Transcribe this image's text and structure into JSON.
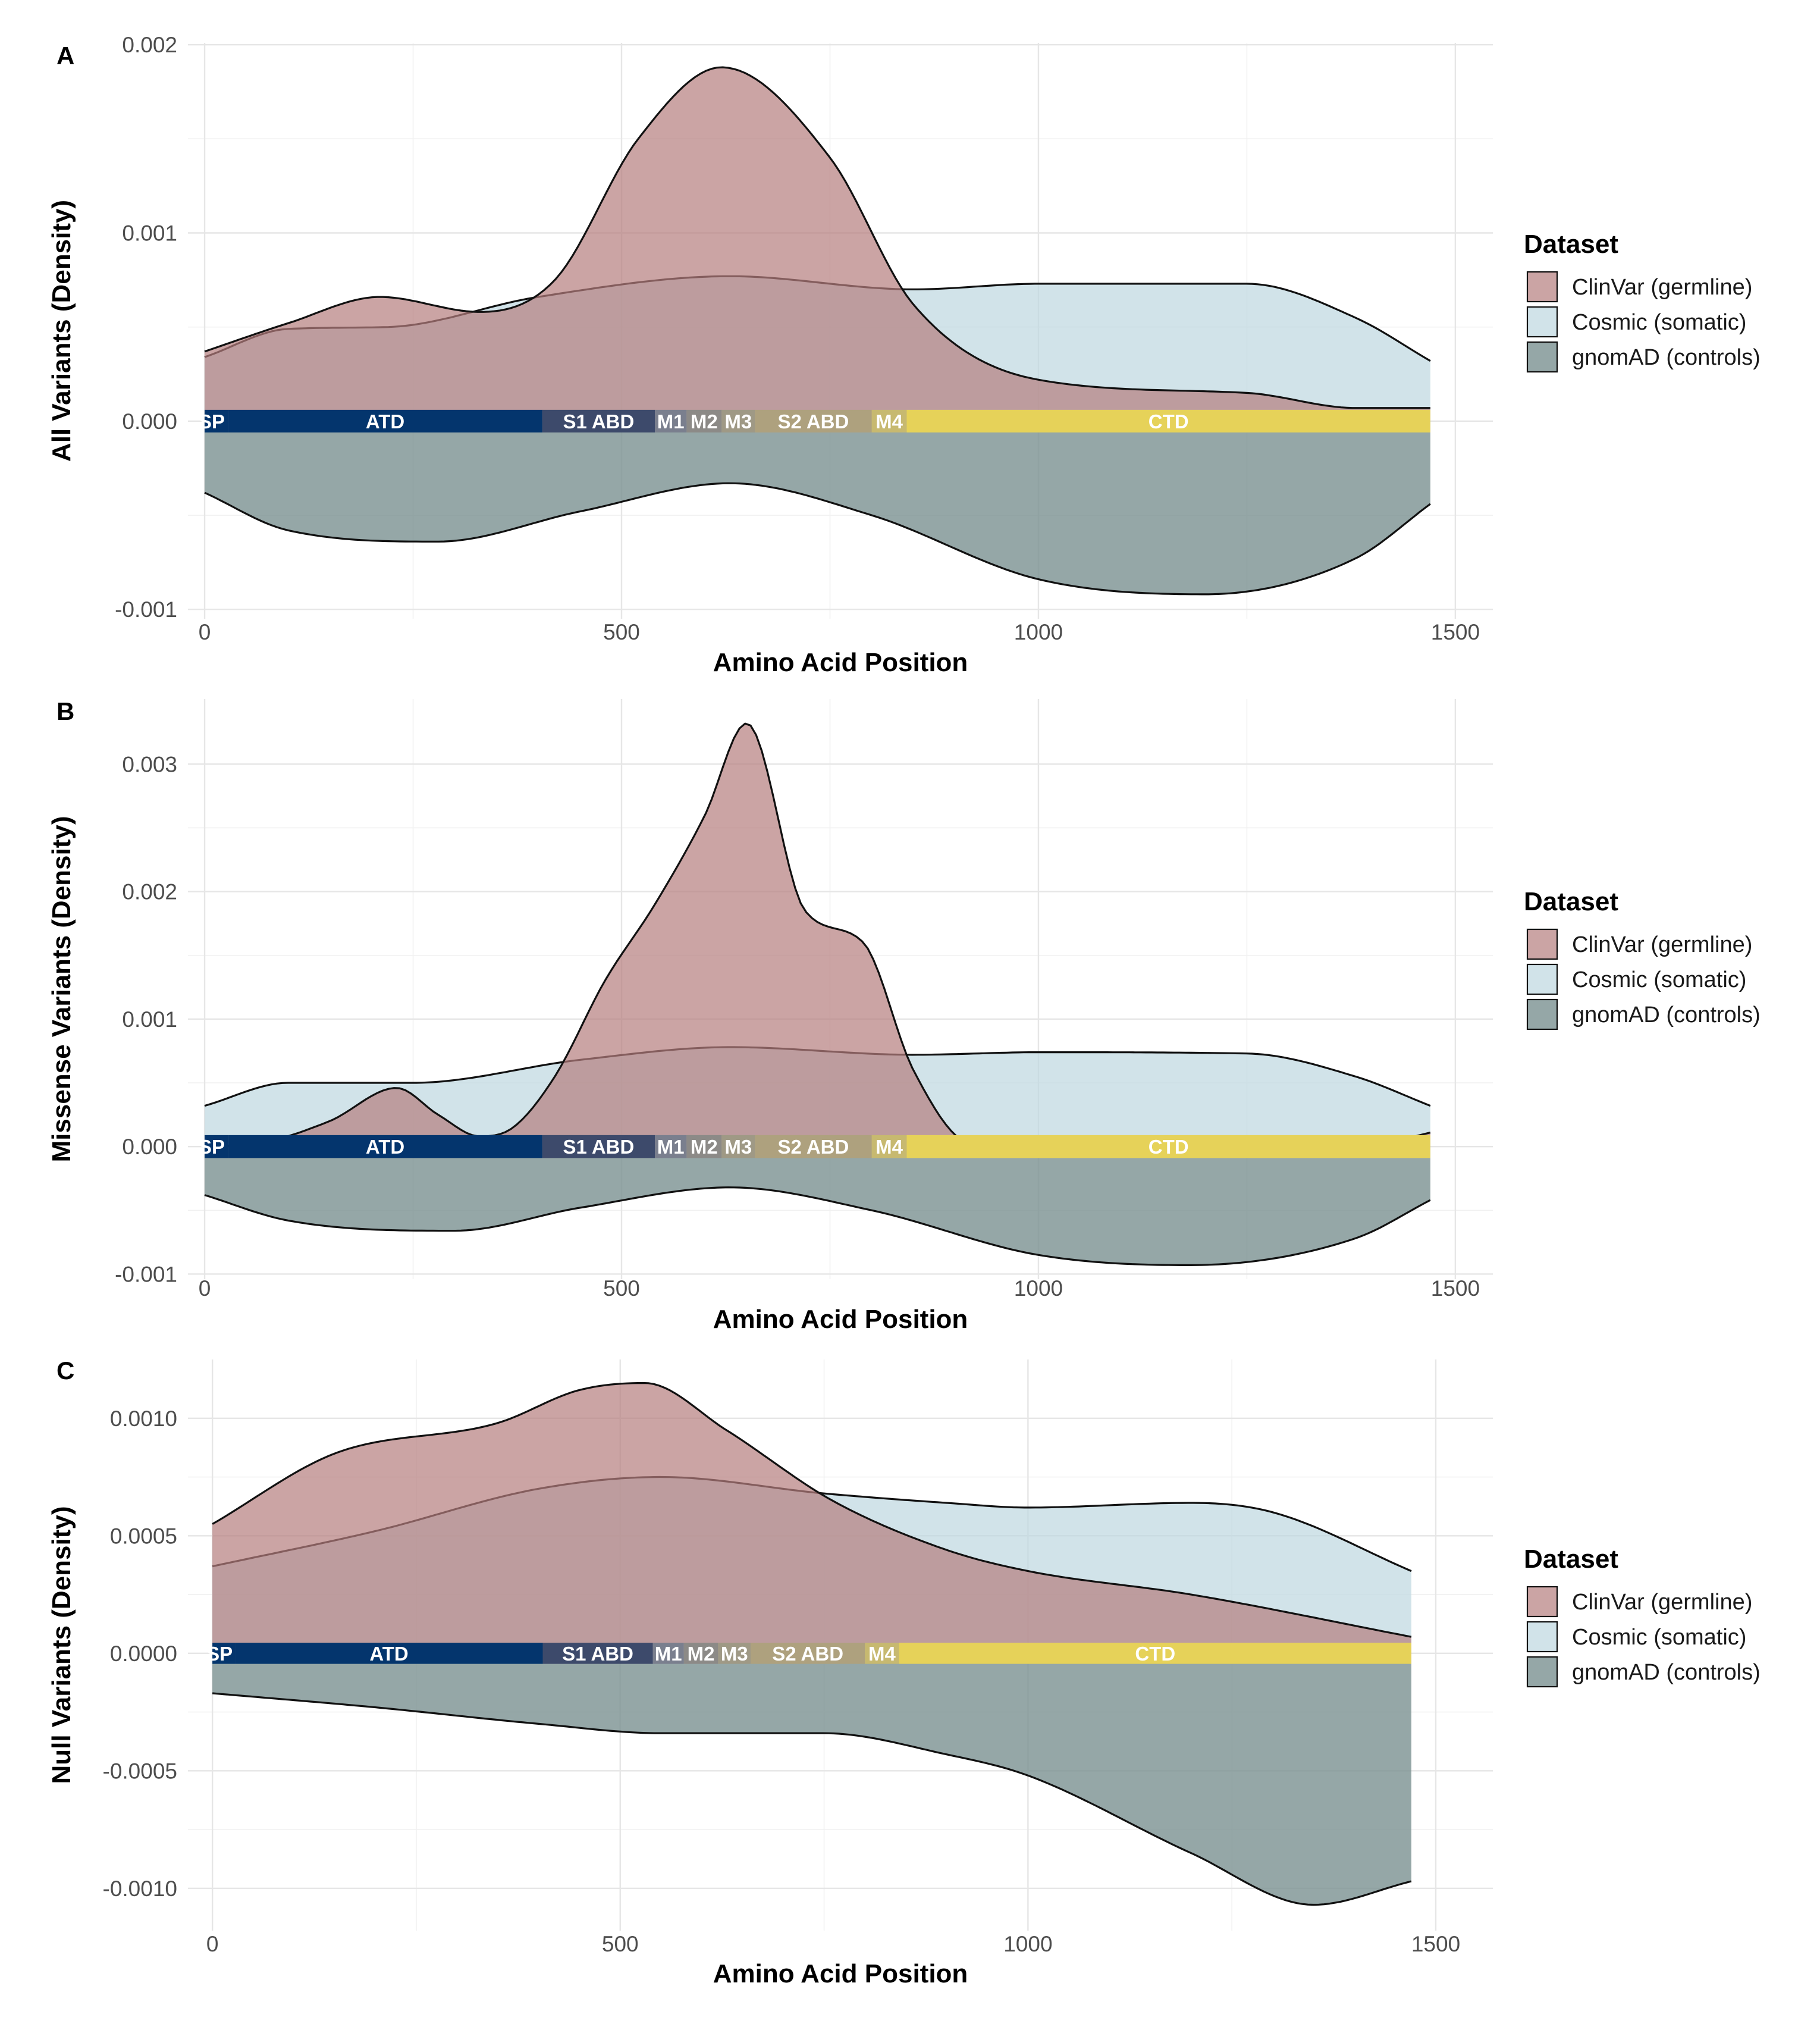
{
  "chart_data": [
    {
      "type": "area",
      "panel": "A",
      "title": "",
      "xlabel": "Amino Acid Position",
      "ylabel": "All Variants (Density)",
      "xlim": [
        -20,
        1545
      ],
      "ylim": [
        -0.00105,
        0.00201
      ],
      "xticks": [
        0,
        500,
        1000,
        1500
      ],
      "xtick_labels": [
        "0",
        "500",
        "1000",
        "1500"
      ],
      "yticks": [
        -0.001,
        0,
        0.001,
        0.002
      ],
      "ytick_labels": [
        "-0.001",
        "0.000",
        "0.001",
        "0.002"
      ],
      "x_extent": [
        0,
        1470
      ],
      "legend_title": "Dataset",
      "legend_entries": [
        "ClinVar (germline)",
        "Cosmic (somatic)",
        "gnomAD (controls)"
      ],
      "series": [
        {
          "name": "ClinVar (germline)",
          "x": [
            0,
            100,
            210,
            330,
            420,
            520,
            620,
            750,
            850,
            1000,
            1250,
            1380,
            1470
          ],
          "values": [
            0.00037,
            0.00052,
            0.00066,
            0.00058,
            0.00075,
            0.0015,
            0.00188,
            0.0014,
            0.00062,
            0.00022,
            0.00015,
            7e-05,
            7e-05
          ]
        },
        {
          "name": "Cosmic (somatic)",
          "x": [
            0,
            100,
            220,
            400,
            630,
            850,
            1000,
            1250,
            1380,
            1470
          ],
          "values": [
            0.00034,
            0.00049,
            0.0005,
            0.00066,
            0.00077,
            0.0007,
            0.00073,
            0.00073,
            0.00055,
            0.00032
          ]
        },
        {
          "name": "gnomAD (controls)",
          "x": [
            0,
            100,
            280,
            450,
            630,
            800,
            1000,
            1200,
            1380,
            1470
          ],
          "values": [
            -0.00038,
            -0.00058,
            -0.00064,
            -0.00048,
            -0.00033,
            -0.0005,
            -0.00084,
            -0.00092,
            -0.00073,
            -0.00044
          ]
        }
      ],
      "domains": [
        {
          "label": "SP",
          "start": 0,
          "end": 28,
          "color": "#04356d"
        },
        {
          "label": "ATD",
          "start": 28,
          "end": 405,
          "color": "#04356d"
        },
        {
          "label": "S1 ABD",
          "start": 405,
          "end": 540,
          "color": "#3d4a6b"
        },
        {
          "label": "M1",
          "start": 540,
          "end": 578,
          "color": "#7a7f8e"
        },
        {
          "label": "M2",
          "start": 578,
          "end": 620,
          "color": "#8c8a87"
        },
        {
          "label": "M3",
          "start": 620,
          "end": 660,
          "color": "#9f9985"
        },
        {
          "label": "S2 ABD",
          "start": 660,
          "end": 800,
          "color": "#aea17e"
        },
        {
          "label": "M4",
          "start": 800,
          "end": 842,
          "color": "#c7b970"
        },
        {
          "label": "CTD",
          "start": 842,
          "end": 1470,
          "color": "#e6d259"
        }
      ],
      "domain_band": [
        -6e-05,
        6e-05
      ]
    },
    {
      "type": "area",
      "panel": "B",
      "title": "",
      "xlabel": "Amino Acid Position",
      "ylabel": "Missense Variants (Density)",
      "xlim": [
        -20,
        1545
      ],
      "ylim": [
        -0.00104,
        0.00351
      ],
      "xticks": [
        0,
        500,
        1000,
        1500
      ],
      "xtick_labels": [
        "0",
        "500",
        "1000",
        "1500"
      ],
      "yticks": [
        -0.001,
        0,
        0.001,
        0.002,
        0.003
      ],
      "ytick_labels": [
        "-0.001",
        "0.000",
        "0.001",
        "0.002",
        "0.003"
      ],
      "x_extent": [
        0,
        1470
      ],
      "legend_title": "Dataset",
      "legend_entries": [
        "ClinVar (germline)",
        "Cosmic (somatic)",
        "gnomAD (controls)"
      ],
      "series": [
        {
          "name": "ClinVar (germline)",
          "x": [
            0,
            60,
            150,
            230,
            280,
            330,
            370,
            420,
            480,
            540,
            600,
            650,
            720,
            790,
            850,
            920,
            1000,
            1300,
            1400,
            1470
          ],
          "values": [
            0,
            2e-05,
            0.0002,
            0.00046,
            0.00025,
            8e-05,
            0.00015,
            0.00055,
            0.0013,
            0.0019,
            0.0026,
            0.00332,
            0.00185,
            0.0016,
            0.0006,
            2e-05,
            0,
            0,
            1e-05,
            0.00011
          ]
        },
        {
          "name": "Cosmic (somatic)",
          "x": [
            0,
            100,
            250,
            450,
            630,
            850,
            1000,
            1250,
            1380,
            1470
          ],
          "values": [
            0.00032,
            0.0005,
            0.0005,
            0.00068,
            0.00078,
            0.00072,
            0.00074,
            0.00073,
            0.00055,
            0.00032
          ]
        },
        {
          "name": "gnomAD (controls)",
          "x": [
            0,
            100,
            300,
            450,
            630,
            800,
            1000,
            1180,
            1380,
            1470
          ],
          "values": [
            -0.00038,
            -0.00058,
            -0.00066,
            -0.00048,
            -0.00032,
            -0.0005,
            -0.00085,
            -0.00093,
            -0.00072,
            -0.00042
          ]
        }
      ],
      "domains": [
        {
          "label": "SP",
          "start": 0,
          "end": 28,
          "color": "#04356d"
        },
        {
          "label": "ATD",
          "start": 28,
          "end": 405,
          "color": "#04356d"
        },
        {
          "label": "S1 ABD",
          "start": 405,
          "end": 540,
          "color": "#3d4a6b"
        },
        {
          "label": "M1",
          "start": 540,
          "end": 578,
          "color": "#7a7f8e"
        },
        {
          "label": "M2",
          "start": 578,
          "end": 620,
          "color": "#8c8a87"
        },
        {
          "label": "M3",
          "start": 620,
          "end": 660,
          "color": "#9f9985"
        },
        {
          "label": "S2 ABD",
          "start": 660,
          "end": 800,
          "color": "#aea17e"
        },
        {
          "label": "M4",
          "start": 800,
          "end": 842,
          "color": "#c7b970"
        },
        {
          "label": "CTD",
          "start": 842,
          "end": 1470,
          "color": "#e6d259"
        }
      ],
      "domain_band": [
        -9e-05,
        9e-05
      ]
    },
    {
      "type": "area",
      "panel": "C",
      "title": "",
      "xlabel": "Amino Acid Position",
      "ylabel": "Null Variants (Density)",
      "xlim": [
        -30,
        1570
      ],
      "ylim": [
        -0.00118,
        0.00125
      ],
      "xticks": [
        0,
        500,
        1000,
        1500
      ],
      "xtick_labels": [
        "0",
        "500",
        "1000",
        "1500"
      ],
      "yticks": [
        -0.001,
        -0.0005,
        0,
        0.0005,
        0.001
      ],
      "ytick_labels": [
        "-0.0010",
        "-0.0005",
        "0.0000",
        "0.0005",
        "0.0010"
      ],
      "x_extent": [
        0,
        1470
      ],
      "legend_title": "Dataset",
      "legend_entries": [
        "ClinVar (germline)",
        "Cosmic (somatic)",
        "gnomAD (controls)"
      ],
      "series": [
        {
          "name": "ClinVar (germline)",
          "x": [
            0,
            150,
            350,
            450,
            530,
            630,
            760,
            900,
            1000,
            1200,
            1470
          ],
          "values": [
            0.00055,
            0.00085,
            0.00098,
            0.00112,
            0.00115,
            0.00095,
            0.00065,
            0.00044,
            0.00035,
            0.00025,
            7e-05
          ]
        },
        {
          "name": "Cosmic (somatic)",
          "x": [
            0,
            200,
            400,
            550,
            750,
            900,
            1000,
            1200,
            1300,
            1470
          ],
          "values": [
            0.00037,
            0.00052,
            0.0007,
            0.00075,
            0.00068,
            0.00064,
            0.00062,
            0.00064,
            0.0006,
            0.00035
          ]
        },
        {
          "name": "gnomAD (controls)",
          "x": [
            0,
            200,
            400,
            550,
            750,
            900,
            1000,
            1200,
            1350,
            1470
          ],
          "values": [
            -0.00017,
            -0.00023,
            -0.0003,
            -0.00034,
            -0.00034,
            -0.00043,
            -0.00052,
            -0.00085,
            -0.00107,
            -0.00097
          ]
        }
      ],
      "domains": [
        {
          "label": "SP",
          "start": 0,
          "end": 28,
          "color": "#04356d"
        },
        {
          "label": "ATD",
          "start": 28,
          "end": 405,
          "color": "#04356d"
        },
        {
          "label": "S1 ABD",
          "start": 405,
          "end": 540,
          "color": "#3d4a6b"
        },
        {
          "label": "M1",
          "start": 540,
          "end": 578,
          "color": "#7a7f8e"
        },
        {
          "label": "M2",
          "start": 578,
          "end": 620,
          "color": "#8c8a87"
        },
        {
          "label": "M3",
          "start": 620,
          "end": 660,
          "color": "#9f9985"
        },
        {
          "label": "S2 ABD",
          "start": 660,
          "end": 800,
          "color": "#aea17e"
        },
        {
          "label": "M4",
          "start": 800,
          "end": 842,
          "color": "#c7b970"
        },
        {
          "label": "CTD",
          "start": 842,
          "end": 1470,
          "color": "#e6d259"
        }
      ],
      "domain_band": [
        -4.5e-05,
        4.5e-05
      ]
    }
  ],
  "colors": {
    "clinvar": "#b57e7e",
    "cosmic": "#bdd7e0",
    "gnomad": "#778e8e",
    "overlap": "#a19ba3"
  }
}
